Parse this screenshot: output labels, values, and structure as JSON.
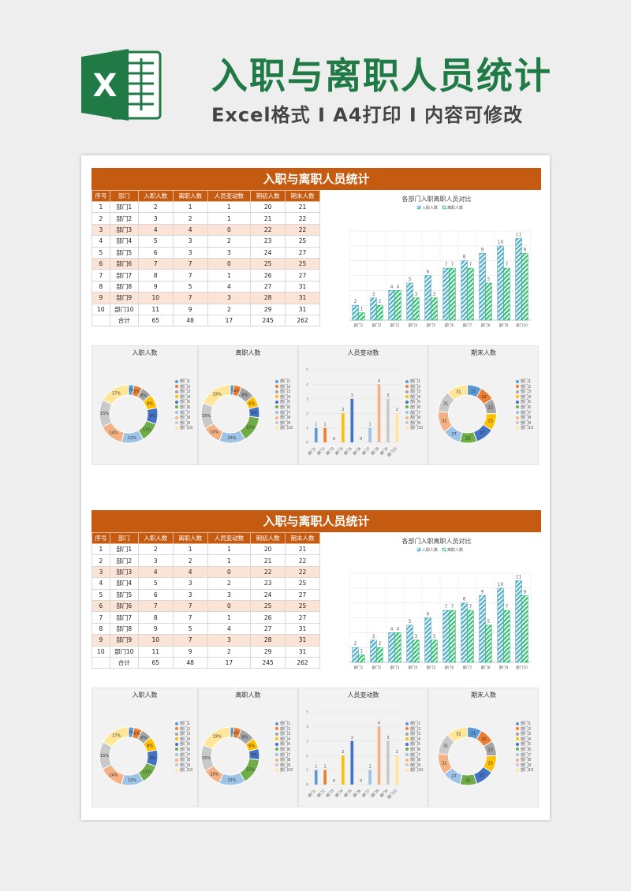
{
  "header": {
    "title": "入职与离职人员统计",
    "subtitle": "Excel格式 I A4打印 I 内容可修改",
    "logo_letter": "X"
  },
  "colors": {
    "brand_green": "#1f7a45",
    "banner": "#c55a11",
    "row_alt": "#fbe3d6",
    "series_in": "#4bacc6",
    "series_out": "#2fbf71",
    "palette": [
      "#5b9bd5",
      "#ed7d31",
      "#a5a5a5",
      "#ffc000",
      "#4472c4",
      "#70ad47",
      "#9dc3e6",
      "#f4b183",
      "#c9c9c9",
      "#ffe699"
    ]
  },
  "blocks": [
    {
      "banner_title": "入职与离职人员统计",
      "table": {
        "columns": [
          "序号",
          "部门",
          "入职人数",
          "离职人数",
          "人员变动数",
          "期初人数",
          "期末人数"
        ],
        "rows": [
          [
            "1",
            "部门1",
            "2",
            "1",
            "1",
            "20",
            "21"
          ],
          [
            "2",
            "部门2",
            "3",
            "2",
            "1",
            "21",
            "22"
          ],
          [
            "3",
            "部门3",
            "4",
            "4",
            "0",
            "22",
            "22"
          ],
          [
            "4",
            "部门4",
            "5",
            "3",
            "2",
            "23",
            "25"
          ],
          [
            "5",
            "部门5",
            "6",
            "3",
            "3",
            "24",
            "27"
          ],
          [
            "6",
            "部门6",
            "7",
            "7",
            "0",
            "25",
            "25"
          ],
          [
            "7",
            "部门7",
            "8",
            "7",
            "1",
            "26",
            "27"
          ],
          [
            "8",
            "部门8",
            "9",
            "5",
            "4",
            "27",
            "31"
          ],
          [
            "9",
            "部门9",
            "10",
            "7",
            "3",
            "28",
            "31"
          ],
          [
            "10",
            "部门10",
            "11",
            "9",
            "2",
            "29",
            "31"
          ]
        ],
        "total": [
          "",
          "合计",
          "65",
          "48",
          "17",
          "245",
          "262"
        ]
      },
      "panel_titles": [
        "入职人数",
        "离职人数",
        "人员变动数",
        "期末人数"
      ]
    },
    {
      "banner_title": "入职与离职人员统计",
      "table": {
        "columns": [
          "序号",
          "部门",
          "入职人数",
          "离职人数",
          "人员变动数",
          "期初人数",
          "期末人数"
        ],
        "rows": [
          [
            "1",
            "部门1",
            "2",
            "1",
            "1",
            "20",
            "21"
          ],
          [
            "2",
            "部门2",
            "3",
            "2",
            "1",
            "21",
            "22"
          ],
          [
            "3",
            "部门3",
            "4",
            "4",
            "0",
            "22",
            "22"
          ],
          [
            "4",
            "部门4",
            "5",
            "3",
            "2",
            "23",
            "25"
          ],
          [
            "5",
            "部门5",
            "6",
            "3",
            "3",
            "24",
            "27"
          ],
          [
            "6",
            "部门6",
            "7",
            "7",
            "0",
            "25",
            "25"
          ],
          [
            "7",
            "部门7",
            "8",
            "7",
            "1",
            "26",
            "27"
          ],
          [
            "8",
            "部门8",
            "9",
            "5",
            "4",
            "27",
            "31"
          ],
          [
            "9",
            "部门9",
            "10",
            "7",
            "3",
            "28",
            "31"
          ],
          [
            "10",
            "部门10",
            "11",
            "9",
            "2",
            "29",
            "31"
          ]
        ],
        "total": [
          "",
          "合计",
          "65",
          "48",
          "17",
          "245",
          "262"
        ]
      },
      "panel_titles": [
        "入职人数",
        "离职人数",
        "人员变动数",
        "期末人数"
      ]
    }
  ],
  "chart_data": [
    {
      "type": "bar",
      "title": "各部门入职离职人员对比",
      "categories": [
        "部门1",
        "部门2",
        "部门3",
        "部门4",
        "部门5",
        "部门6",
        "部门7",
        "部门8",
        "部门9",
        "部门10"
      ],
      "series": [
        {
          "name": "入职人数",
          "values": [
            2,
            3,
            4,
            5,
            6,
            7,
            8,
            9,
            10,
            11
          ]
        },
        {
          "name": "离职人数",
          "values": [
            1,
            2,
            4,
            3,
            3,
            7,
            7,
            5,
            7,
            9
          ]
        }
      ],
      "ylim": [
        0,
        12
      ],
      "grid": true,
      "legend": "top"
    },
    {
      "type": "pie",
      "title": "入职人数",
      "categories": [
        "部门1",
        "部门2",
        "部门3",
        "部门4",
        "部门5",
        "部门6",
        "部门7",
        "部门8",
        "部门9",
        "部门10"
      ],
      "values": [
        2,
        3,
        4,
        5,
        6,
        7,
        8,
        9,
        10,
        11
      ],
      "labels": [
        "3%",
        "5%",
        "6%",
        "8%",
        "9%",
        "11%",
        "12%",
        "14%",
        "15%",
        "17%"
      ],
      "legend": "right"
    },
    {
      "type": "pie",
      "title": "离职人数",
      "categories": [
        "部门1",
        "部门2",
        "部门3",
        "部门4",
        "部门5",
        "部门6",
        "部门7",
        "部门8",
        "部门9",
        "部门10"
      ],
      "values": [
        1,
        2,
        4,
        3,
        3,
        7,
        7,
        5,
        7,
        9
      ],
      "labels": [
        "2%",
        "4%",
        "8%",
        "6%",
        "6%",
        "15%",
        "15%",
        "10%",
        "15%",
        "19%"
      ],
      "legend": "right"
    },
    {
      "type": "bar",
      "title": "人员变动数",
      "categories": [
        "部门1",
        "部门2",
        "部门3",
        "部门4",
        "部门5",
        "部门6",
        "部门7",
        "部门8",
        "部门9",
        "部门10"
      ],
      "values": [
        1,
        1,
        0,
        2,
        3,
        0,
        1,
        4,
        3,
        2
      ],
      "ylim": [
        0,
        5
      ],
      "legend": "right"
    },
    {
      "type": "pie",
      "title": "期末人数",
      "categories": [
        "部门1",
        "部门2",
        "部门3",
        "部门4",
        "部门5",
        "部门6",
        "部门7",
        "部门8",
        "部门9",
        "部门10"
      ],
      "values": [
        21,
        22,
        22,
        25,
        27,
        25,
        27,
        31,
        31,
        31
      ],
      "labels": [
        "21",
        "22",
        "22",
        "25",
        "27",
        "25",
        "27",
        "31",
        "31",
        "31"
      ],
      "legend": "right"
    }
  ]
}
